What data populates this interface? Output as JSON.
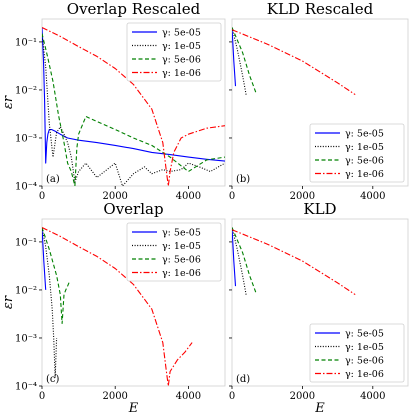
{
  "colors": {
    "5e-05": "#0000ff",
    "1e-05": "#000000",
    "5e-06": "#008000",
    "1e-06": "#ff0000"
  },
  "chart_data": [
    {
      "type": "line",
      "title": "Overlap Rescaled",
      "panel_label": "(a)",
      "ylabel": "εr",
      "xlabel": "",
      "yscale": "log",
      "ylim": [
        0.0001,
        0.3
      ],
      "xlim": [
        0,
        5000
      ],
      "xticks": [
        "0",
        "2000",
        "4000"
      ],
      "yticks": [
        "10⁻¹",
        "10⁻²",
        "10⁻³",
        "10⁻⁴"
      ],
      "legend": "top-right",
      "series": [
        {
          "name": "γ: 5e-05",
          "key": "5e-05",
          "style": "solid",
          "x": [
            0,
            40,
            70,
            100,
            130,
            160,
            200,
            260,
            350,
            500,
            700,
            1000,
            1500,
            2000,
            2500,
            3000,
            3500,
            4000,
            4500,
            5000
          ],
          "y": [
            0.2,
            0.04,
            0.006,
            0.0003,
            0.0008,
            0.0012,
            0.0015,
            0.0015,
            0.0014,
            0.0012,
            0.001,
            0.0009,
            0.0008,
            0.0007,
            0.0006,
            0.0005,
            0.00045,
            0.0004,
            0.00036,
            0.00033
          ]
        },
        {
          "name": "γ: 1e-05",
          "key": "1e-05",
          "style": "dotted",
          "x": [
            0,
            100,
            200,
            300,
            400,
            500,
            600,
            700,
            800,
            900,
            1000,
            1200,
            1500,
            2000,
            2200,
            2500,
            2800,
            3000,
            3300,
            3500,
            3800,
            4000,
            4300,
            4600,
            5000
          ],
          "y": [
            0.15,
            0.03,
            0.002,
            0.0004,
            0.0013,
            0.0017,
            0.0012,
            0.0008,
            0.0004,
            0.00012,
            0.0002,
            0.0003,
            0.00015,
            0.0003,
            0.0001,
            0.00018,
            0.00025,
            0.00018,
            0.00022,
            0.0002,
            0.00022,
            0.0003,
            0.00025,
            0.0002,
            0.0003
          ]
        },
        {
          "name": "γ: 5e-06",
          "key": "5e-06",
          "style": "dashed",
          "x": [
            0,
            150,
            300,
            450,
            600,
            700,
            800,
            900,
            950,
            1000,
            1200,
            1500,
            2000,
            2500,
            3000,
            3500,
            4000,
            4500,
            5000
          ],
          "y": [
            0.15,
            0.05,
            0.015,
            0.003,
            0.0008,
            0.0003,
            0.0002,
            0.0001,
            0.0006,
            0.0012,
            0.0028,
            0.0022,
            0.0015,
            0.001,
            0.0007,
            0.0004,
            0.0002,
            0.00035,
            0.0004
          ]
        },
        {
          "name": "γ: 1e-06",
          "key": "1e-06",
          "style": "dashdot",
          "x": [
            0,
            500,
            1000,
            1500,
            2000,
            2500,
            3000,
            3300,
            3400,
            3450,
            3500,
            3600,
            3800,
            4000,
            4500,
            5000
          ],
          "y": [
            0.2,
            0.13,
            0.08,
            0.05,
            0.028,
            0.013,
            0.004,
            0.0008,
            0.0002,
            0.0001,
            0.0002,
            0.0005,
            0.001,
            0.0012,
            0.0016,
            0.0018
          ]
        }
      ]
    },
    {
      "type": "line",
      "title": "KLD Rescaled",
      "panel_label": "(b)",
      "xlabel": "",
      "ylabel": "",
      "yscale": "log",
      "ylim": [
        0.0001,
        0.3
      ],
      "xlim": [
        0,
        5000
      ],
      "xticks": [
        "0",
        "2000",
        "4000"
      ],
      "yticks": [],
      "legend": "bottom-right",
      "series": [
        {
          "name": "γ: 5e-05",
          "key": "5e-05",
          "style": "solid",
          "x": [
            0,
            50,
            100
          ],
          "y": [
            0.2,
            0.04,
            0.012
          ]
        },
        {
          "name": "γ: 1e-05",
          "key": "1e-05",
          "style": "dotted",
          "x": [
            0,
            150,
            300,
            400
          ],
          "y": [
            0.2,
            0.07,
            0.02,
            0.008
          ]
        },
        {
          "name": "γ: 5e-06",
          "key": "5e-06",
          "style": "dashed",
          "x": [
            0,
            300,
            500,
            700
          ],
          "y": [
            0.2,
            0.06,
            0.02,
            0.008
          ]
        },
        {
          "name": "γ: 1e-06",
          "key": "1e-06",
          "style": "dashdot",
          "x": [
            0,
            1000,
            2000,
            3000,
            3500
          ],
          "y": [
            0.18,
            0.09,
            0.04,
            0.014,
            0.008
          ]
        }
      ]
    },
    {
      "type": "line",
      "title": "Overlap",
      "panel_label": "(c)",
      "ylabel": "εr",
      "xlabel": "E",
      "yscale": "log",
      "ylim": [
        0.0001,
        0.3
      ],
      "xlim": [
        0,
        5000
      ],
      "xticks": [
        "0",
        "2000",
        "4000"
      ],
      "yticks": [
        "10⁻¹",
        "10⁻²",
        "10⁻³",
        "10⁻⁴"
      ],
      "legend": "top-right",
      "series": [
        {
          "name": "γ: 5e-05",
          "key": "5e-05",
          "style": "solid",
          "x": [
            0,
            50,
            100
          ],
          "y": [
            0.2,
            0.04,
            0.01
          ]
        },
        {
          "name": "γ: 1e-05",
          "key": "1e-05",
          "style": "dotted",
          "x": [
            0,
            100,
            200,
            280,
            320,
            360,
            400
          ],
          "y": [
            0.2,
            0.08,
            0.02,
            0.004,
            0.001,
            0.00015,
            0.001
          ]
        },
        {
          "name": "γ: 5e-06",
          "key": "5e-06",
          "style": "dashed",
          "x": [
            0,
            200,
            400,
            500,
            550,
            600,
            650,
            700,
            750
          ],
          "y": [
            0.2,
            0.07,
            0.02,
            0.008,
            0.002,
            0.008,
            0.01,
            0.012,
            0.015
          ]
        },
        {
          "name": "γ: 1e-06",
          "key": "1e-06",
          "style": "dashdot",
          "x": [
            0,
            500,
            1000,
            1500,
            2000,
            2500,
            3000,
            3300,
            3400,
            3450,
            3500,
            3700,
            3900,
            4100
          ],
          "y": [
            0.2,
            0.13,
            0.08,
            0.05,
            0.028,
            0.013,
            0.004,
            0.0008,
            0.0002,
            0.0001,
            0.0002,
            0.00035,
            0.0005,
            0.0008
          ]
        }
      ]
    },
    {
      "type": "line",
      "title": "KLD",
      "panel_label": "(d)",
      "ylabel": "",
      "xlabel": "E",
      "yscale": "log",
      "ylim": [
        0.0001,
        0.3
      ],
      "xlim": [
        0,
        5000
      ],
      "xticks": [
        "0",
        "2000",
        "4000"
      ],
      "yticks": [],
      "legend": "bottom-right",
      "series": [
        {
          "name": "γ: 5e-05",
          "key": "5e-05",
          "style": "solid",
          "x": [
            0,
            50,
            100
          ],
          "y": [
            0.2,
            0.04,
            0.012
          ]
        },
        {
          "name": "γ: 1e-05",
          "key": "1e-05",
          "style": "dotted",
          "x": [
            0,
            150,
            300,
            400
          ],
          "y": [
            0.2,
            0.07,
            0.02,
            0.008
          ]
        },
        {
          "name": "γ: 5e-06",
          "key": "5e-06",
          "style": "dashed",
          "x": [
            0,
            300,
            500,
            700
          ],
          "y": [
            0.2,
            0.06,
            0.02,
            0.008
          ]
        },
        {
          "name": "γ: 1e-06",
          "key": "1e-06",
          "style": "dashdot",
          "x": [
            0,
            1000,
            2000,
            3000,
            3500
          ],
          "y": [
            0.18,
            0.09,
            0.04,
            0.014,
            0.008
          ]
        }
      ]
    }
  ]
}
